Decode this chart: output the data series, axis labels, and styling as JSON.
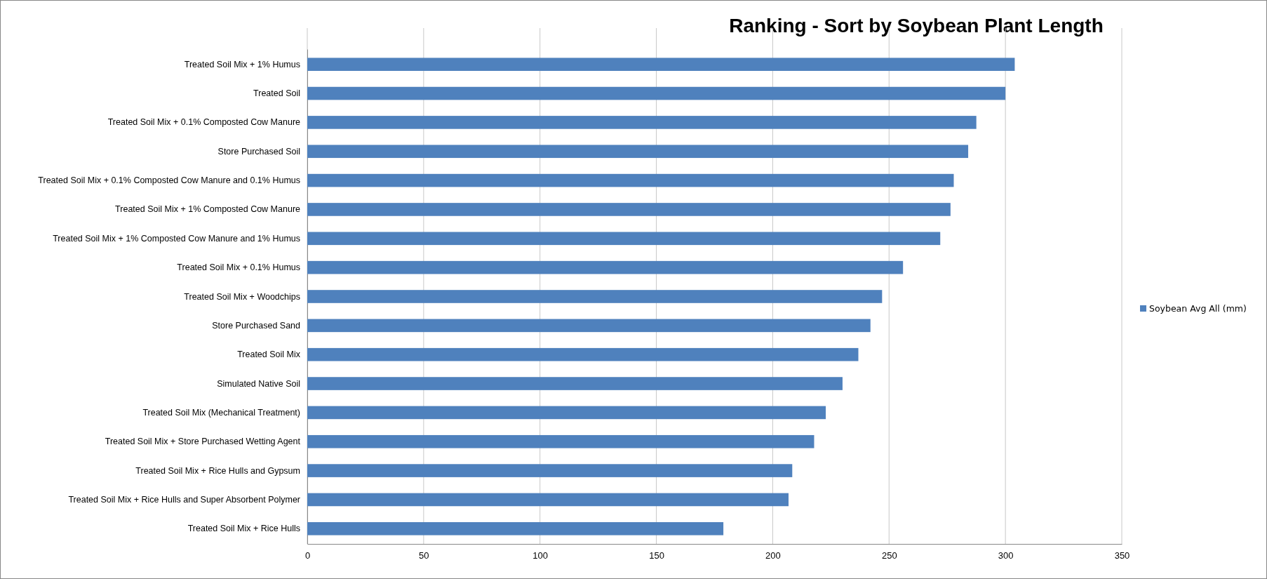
{
  "chart_data": {
    "type": "bar",
    "orientation": "horizontal",
    "title": "Ranking - Sort by Soybean Plant Length",
    "categories": [
      "Treated Soil Mix + 1% Humus",
      "Treated Soil",
      "Treated Soil Mix + 0.1% Composted Cow Manure",
      "Store Purchased Soil",
      "Treated Soil Mix + 0.1% Composted Cow Manure and 0.1% Humus",
      "Treated Soil Mix + 1% Composted Cow Manure",
      "Treated Soil Mix + 1% Composted Cow Manure and 1% Humus",
      "Treated Soil Mix + 0.1% Humus",
      "Treated Soil Mix + Woodchips",
      "Store Purchased Sand",
      "Treated Soil Mix",
      "Simulated Native Soil",
      "Treated Soil Mix (Mechanical Treatment)",
      "Treated Soil Mix + Store Purchased Wetting Agent",
      "Treated Soil Mix + Rice Hulls and Gypsum",
      "Treated Soil Mix + Rice Hulls and Super Absorbent Polymer",
      "Treated Soil Mix + Rice Hulls"
    ],
    "series": [
      {
        "name": "Soybean Avg All (mm)",
        "color": "#4f81bd",
        "values": [
          304,
          300,
          287.5,
          284,
          277.8,
          276.4,
          272,
          256,
          247,
          242,
          236.8,
          230,
          222.8,
          217.8,
          208.4,
          206.8,
          178.8
        ]
      }
    ],
    "xlim": [
      0,
      350
    ],
    "xticks": [
      0,
      50,
      100,
      150,
      200,
      250,
      300,
      350
    ],
    "grid": "x",
    "legend": "right"
  }
}
